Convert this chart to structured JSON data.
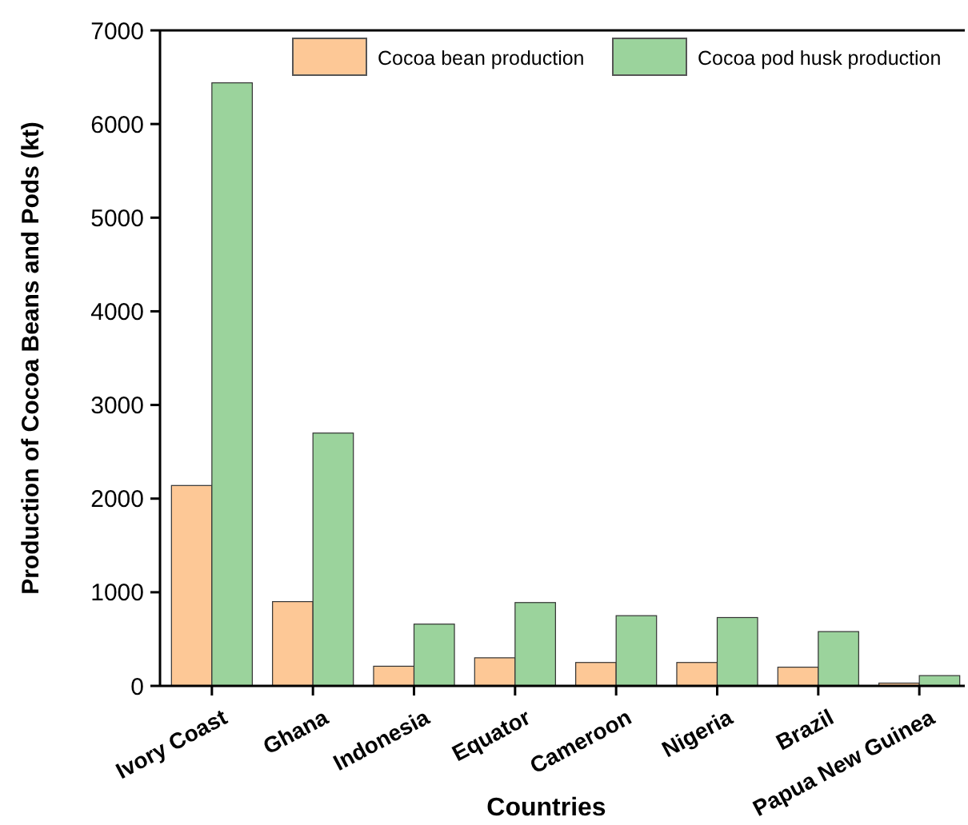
{
  "chart_data": {
    "type": "bar",
    "xlabel": "Countries",
    "ylabel": "Production of Cocoa Beans and Pods (kt)",
    "categories": [
      "Ivory Coast",
      "Ghana",
      "Indonesia",
      "Equator",
      "Cameroon",
      "Nigeria",
      "Brazil",
      "Papua New Guinea"
    ],
    "series": [
      {
        "name": "Cocoa bean production",
        "color": "#fdc896",
        "values": [
          2140,
          900,
          210,
          300,
          250,
          250,
          200,
          30
        ]
      },
      {
        "name": "Cocoa pod husk production",
        "color": "#9bd39c",
        "values": [
          6440,
          2700,
          660,
          890,
          750,
          730,
          580,
          110
        ]
      }
    ],
    "ylim": [
      0,
      7000
    ],
    "yticks": [
      0,
      1000,
      2000,
      3000,
      4000,
      5000,
      6000,
      7000
    ],
    "grid": false,
    "legend": "top right"
  }
}
